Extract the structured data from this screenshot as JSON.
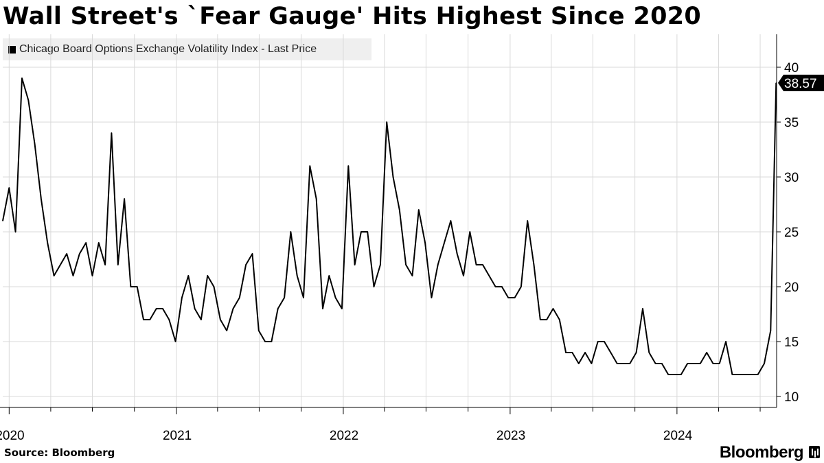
{
  "header": {
    "title": "Wall Street's `Fear Gauge' Hits Highest Since 2020"
  },
  "footer": {
    "source": "Source: Bloomberg",
    "brand": "Bloomberg"
  },
  "colors": {
    "line": "#000000",
    "grid": "#d9d9d9",
    "legend_bg": "#efefef"
  },
  "chart_data": {
    "type": "line",
    "title": "Wall Street's `Fear Gauge' Hits Highest Since 2020",
    "xlabel": "",
    "ylabel": "",
    "legend": {
      "placement": "top-left",
      "entries": [
        "Chicago Board Options Exchange Volatility Index - Last Price"
      ]
    },
    "y_axis": {
      "side": "right",
      "ylim": [
        9,
        43
      ],
      "ticks": [
        10,
        15,
        20,
        25,
        30,
        35,
        40
      ]
    },
    "x_axis": {
      "range": [
        "2019-12-18",
        "2024-08-06"
      ],
      "year_labels": [
        "2020",
        "2021",
        "2022",
        "2023",
        "2024"
      ]
    },
    "grid": true,
    "last_value_label": "38.57",
    "series": [
      {
        "name": "Chicago Board Options Exchange Volatility Index - Last Price",
        "x": [
          "2019-12-18",
          "2020-01-01",
          "2020-01-15",
          "2020-01-29",
          "2020-02-12",
          "2020-02-26",
          "2020-03-11",
          "2020-03-25",
          "2020-04-08",
          "2020-04-22",
          "2020-05-06",
          "2020-05-20",
          "2020-06-03",
          "2020-06-17",
          "2020-07-01",
          "2020-07-15",
          "2020-07-29",
          "2020-08-12",
          "2020-08-26",
          "2020-09-09",
          "2020-09-23",
          "2020-10-07",
          "2020-10-21",
          "2020-11-04",
          "2020-11-18",
          "2020-12-02",
          "2020-12-16",
          "2020-12-30",
          "2021-01-13",
          "2021-01-27",
          "2021-02-10",
          "2021-02-24",
          "2021-03-10",
          "2021-03-24",
          "2021-04-07",
          "2021-04-21",
          "2021-05-05",
          "2021-05-19",
          "2021-06-02",
          "2021-06-16",
          "2021-06-30",
          "2021-07-14",
          "2021-07-28",
          "2021-08-11",
          "2021-08-25",
          "2021-09-08",
          "2021-09-22",
          "2021-10-06",
          "2021-10-20",
          "2021-11-03",
          "2021-11-17",
          "2021-12-01",
          "2021-12-15",
          "2021-12-29",
          "2022-01-12",
          "2022-01-26",
          "2022-02-09",
          "2022-02-23",
          "2022-03-09",
          "2022-03-23",
          "2022-04-06",
          "2022-04-20",
          "2022-05-04",
          "2022-05-18",
          "2022-06-01",
          "2022-06-15",
          "2022-06-29",
          "2022-07-13",
          "2022-07-27",
          "2022-08-10",
          "2022-08-24",
          "2022-09-07",
          "2022-09-21",
          "2022-10-05",
          "2022-10-19",
          "2022-11-02",
          "2022-11-16",
          "2022-11-30",
          "2022-12-14",
          "2022-12-28",
          "2023-01-11",
          "2023-01-25",
          "2023-02-08",
          "2023-02-22",
          "2023-03-08",
          "2023-03-22",
          "2023-04-05",
          "2023-04-19",
          "2023-05-03",
          "2023-05-17",
          "2023-05-31",
          "2023-06-14",
          "2023-06-28",
          "2023-07-12",
          "2023-07-26",
          "2023-08-09",
          "2023-08-23",
          "2023-09-06",
          "2023-09-20",
          "2023-10-04",
          "2023-10-18",
          "2023-11-01",
          "2023-11-15",
          "2023-11-29",
          "2023-12-13",
          "2023-12-27",
          "2024-01-10",
          "2024-01-24",
          "2024-02-07",
          "2024-02-21",
          "2024-03-06",
          "2024-03-20",
          "2024-04-03",
          "2024-04-17",
          "2024-05-01",
          "2024-05-15",
          "2024-05-29",
          "2024-06-12",
          "2024-06-26",
          "2024-07-10",
          "2024-07-24",
          "2024-08-05"
        ],
        "values": [
          26,
          29,
          25,
          39,
          37,
          33,
          28,
          24,
          21,
          22,
          23,
          21,
          23,
          24,
          21,
          24,
          22,
          34,
          22,
          28,
          20,
          20,
          17,
          17,
          18,
          18,
          17,
          15,
          19,
          21,
          18,
          17,
          21,
          20,
          17,
          16,
          18,
          19,
          22,
          23,
          16,
          15,
          15,
          18,
          19,
          25,
          21,
          19,
          31,
          28,
          18,
          21,
          19,
          18,
          31,
          22,
          25,
          25,
          20,
          22,
          35,
          30,
          27,
          22,
          21,
          27,
          24,
          19,
          22,
          24,
          26,
          23,
          21,
          25,
          22,
          22,
          21,
          20,
          20,
          19,
          19,
          20,
          26,
          22,
          17,
          17,
          18,
          17,
          14,
          14,
          13,
          14,
          13,
          15,
          15,
          14,
          13,
          13,
          13,
          14,
          18,
          14,
          13,
          13,
          12,
          12,
          12,
          13,
          13,
          13,
          14,
          13,
          13,
          15,
          12,
          12,
          12,
          12,
          12,
          13,
          16,
          38.57
        ]
      }
    ]
  }
}
